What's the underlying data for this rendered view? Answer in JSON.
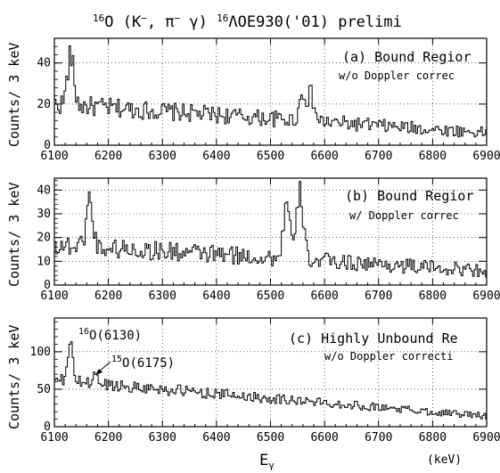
{
  "figure": {
    "title_parts": {
      "sup1": "16",
      "a": "O (K",
      "km": "−",
      "b": ", π",
      "pim": "−",
      "c": " γ) ",
      "sup2": "16",
      "d": "ΛO",
      "e": "E930('01) prelimi"
    },
    "x_axis_label_main": "E",
    "x_axis_label_sub": "γ",
    "x_axis_unit": "(keV)"
  },
  "chart_data": [
    {
      "type": "histogram",
      "panel": "a",
      "annotation_line1": "(a) Bound Regior",
      "annotation_line2": "w/o Doppler correc",
      "ylabel": "Counts/ 3 keV",
      "xlim": [
        6100,
        6900
      ],
      "ylim": [
        0,
        52
      ],
      "xticks": [
        6100,
        6200,
        6300,
        6400,
        6500,
        6600,
        6700,
        6800,
        6900
      ],
      "yticks": [
        0,
        20,
        40
      ],
      "grid": true,
      "bin_width": 3,
      "peaks": [
        {
          "x": 6130,
          "height": 47
        },
        {
          "x": 6560,
          "height": 24
        },
        {
          "x": 6575,
          "height": 22
        }
      ],
      "background": {
        "start": 20,
        "end": 6
      }
    },
    {
      "type": "histogram",
      "panel": "b",
      "annotation_line1": "(b) Bound Regior",
      "annotation_line2": "w/ Doppler correc",
      "ylabel": "Counts/ 3 keV",
      "xlim": [
        6100,
        6900
      ],
      "ylim": [
        0,
        45
      ],
      "xticks": [
        6100,
        6200,
        6300,
        6400,
        6500,
        6600,
        6700,
        6800,
        6900
      ],
      "yticks": [
        0,
        10,
        20,
        30,
        40
      ],
      "grid": true,
      "bin_width": 3,
      "peaks": [
        {
          "x": 6165,
          "height": 39
        },
        {
          "x": 6530,
          "height": 36
        },
        {
          "x": 6555,
          "height": 41
        }
      ],
      "background": {
        "start": 17,
        "end": 6
      }
    },
    {
      "type": "histogram",
      "panel": "c",
      "annotation_line1": "(c) Highly Unbound Re",
      "annotation_line2": "w/o Doppler correcti",
      "ylabel": "Counts/ 3 keV",
      "xlim": [
        6100,
        6900
      ],
      "ylim": [
        0,
        145
      ],
      "xticks": [
        6100,
        6200,
        6300,
        6400,
        6500,
        6600,
        6700,
        6800,
        6900
      ],
      "yticks": [
        0,
        50,
        100
      ],
      "grid": true,
      "bin_width": 3,
      "peaks": [
        {
          "x": 6130,
          "height": 132
        },
        {
          "x": 6175,
          "height": 72
        }
      ],
      "labels": [
        {
          "sup": "16",
          "text": "O(6130)"
        },
        {
          "sup": "15",
          "text": "O(6175)"
        }
      ],
      "background": {
        "start": 62,
        "end": 14
      }
    }
  ]
}
